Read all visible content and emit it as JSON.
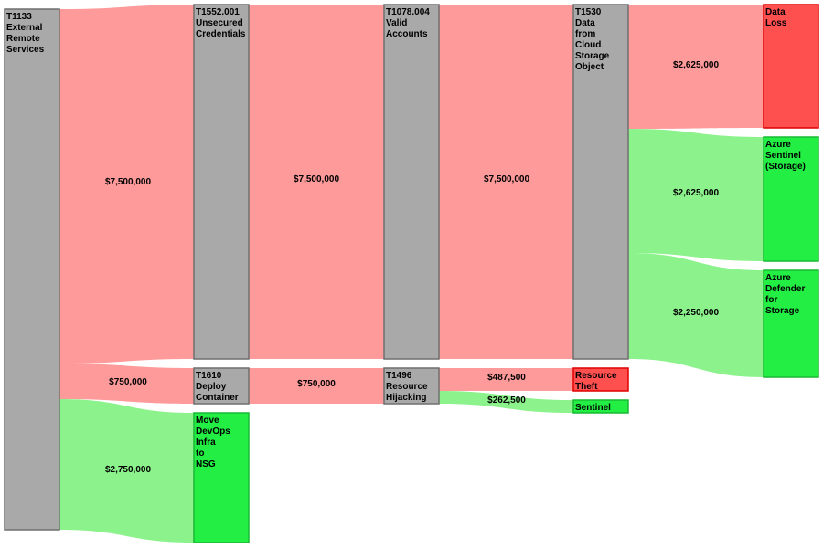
{
  "colors": {
    "attack_flow": "#ff9a9a",
    "defense_flow": "#8cf28c",
    "technique_node_fill": "#a9a9a9",
    "technique_node_stroke": "#6f6f6f",
    "loss_node_fill": "#ff5050",
    "loss_node_stroke": "#e00000",
    "control_node_fill": "#22ee44",
    "control_node_stroke": "#19b833"
  },
  "nodes": [
    {
      "id": "t1133",
      "kind": "technique",
      "lines": [
        "T1133",
        "External",
        "Remote",
        "Services"
      ]
    },
    {
      "id": "t1552",
      "kind": "technique",
      "lines": [
        "T1552.001",
        "Unsecured",
        "Credentials"
      ]
    },
    {
      "id": "t1610",
      "kind": "technique",
      "lines": [
        "T1610",
        "Deploy",
        "Container"
      ]
    },
    {
      "id": "move-devops",
      "kind": "control",
      "lines": [
        "Move",
        "DevOps",
        "Infra",
        "to",
        "NSG"
      ]
    },
    {
      "id": "t1078",
      "kind": "technique",
      "lines": [
        "T1078.004",
        "Valid",
        "Accounts"
      ]
    },
    {
      "id": "t1496",
      "kind": "technique",
      "lines": [
        "T1496",
        "Resource",
        "Hijacking"
      ]
    },
    {
      "id": "t1530",
      "kind": "technique",
      "lines": [
        "T1530",
        "Data",
        "from",
        "Cloud",
        "Storage",
        "Object"
      ]
    },
    {
      "id": "resource-theft",
      "kind": "loss",
      "lines": [
        "Resource",
        "Theft"
      ]
    },
    {
      "id": "sentinel",
      "kind": "control",
      "lines": [
        "Sentinel"
      ]
    },
    {
      "id": "data-loss",
      "kind": "loss",
      "lines": [
        "Data",
        "Loss"
      ]
    },
    {
      "id": "azure-sentinel",
      "kind": "control",
      "lines": [
        "Azure",
        "Sentinel",
        "(Storage)"
      ]
    },
    {
      "id": "azure-defender",
      "kind": "control",
      "lines": [
        "Azure",
        "Defender",
        "for",
        "Storage"
      ]
    }
  ],
  "flows": [
    {
      "id": "t1133-t1552",
      "kind": "attack",
      "label": "$7,500,000",
      "value": 7500000
    },
    {
      "id": "t1133-t1610",
      "kind": "attack",
      "label": "$750,000",
      "value": 750000
    },
    {
      "id": "t1133-move",
      "kind": "defense",
      "label": "$2,750,000",
      "value": 2750000
    },
    {
      "id": "t1552-t1078",
      "kind": "attack",
      "label": "$7,500,000",
      "value": 7500000
    },
    {
      "id": "t1610-t1496",
      "kind": "attack",
      "label": "$750,000",
      "value": 750000
    },
    {
      "id": "t1078-t1530",
      "kind": "attack",
      "label": "$7,500,000",
      "value": 7500000
    },
    {
      "id": "t1496-theft",
      "kind": "attack",
      "label": "$487,500",
      "value": 487500
    },
    {
      "id": "t1496-sentinel",
      "kind": "defense",
      "label": "$262,500",
      "value": 262500
    },
    {
      "id": "t1530-dataloss",
      "kind": "attack",
      "label": "$2,625,000",
      "value": 2625000
    },
    {
      "id": "t1530-azsentinel",
      "kind": "defense",
      "label": "$2,625,000",
      "value": 2625000
    },
    {
      "id": "t1530-azdefender",
      "kind": "defense",
      "label": "$2,250,000",
      "value": 2250000
    }
  ]
}
